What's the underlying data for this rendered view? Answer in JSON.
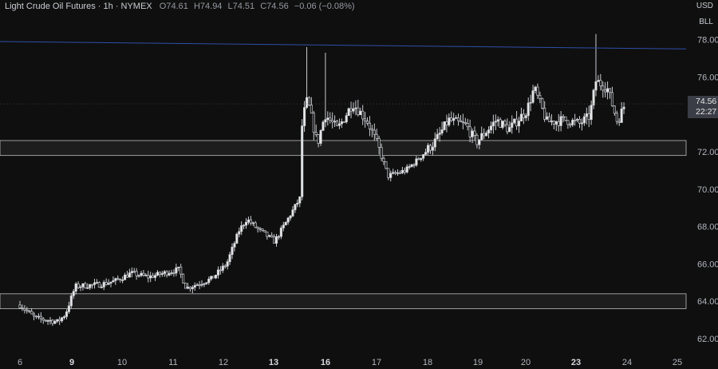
{
  "header": {
    "symbol": "Light Crude Oil Futures · 1h · NYMEX",
    "open": "O74.61",
    "high": "H74.94",
    "low": "L74.51",
    "close": "C74.56",
    "change": "−0.06 (−0.08%)"
  },
  "axis_badges": {
    "currency": "USD",
    "unit": "BLL"
  },
  "last_price": {
    "price": "74.56",
    "countdown": "22:27"
  },
  "colors": {
    "background": "#0f0f0f",
    "candle": "#c9cbd1",
    "trendline": "#1e3a8a",
    "zone_fill": "#2a2a2a",
    "zone_border": "#bdbdbd",
    "text": "#b2b5be"
  },
  "chart_data": {
    "type": "candlestick",
    "title": "Light Crude Oil Futures · 1h · NYMEX",
    "y_ticks": [
      62.0,
      64.0,
      66.0,
      68.0,
      70.0,
      72.0,
      74.0,
      76.0,
      78.0
    ],
    "x_ticks": [
      "6",
      "9",
      "10",
      "11",
      "12",
      "13",
      "16",
      "17",
      "18",
      "19",
      "20",
      "23",
      "24",
      "25"
    ],
    "bold_x_ticks": [
      "9",
      "13",
      "16",
      "23"
    ],
    "ylim": [
      61.5,
      79.2
    ],
    "grid": false,
    "zones": [
      {
        "from": 71.8,
        "to": 72.6
      },
      {
        "from": 63.6,
        "to": 64.4
      }
    ],
    "trendline": {
      "start": [
        0,
        77.9
      ],
      "end": [
        25,
        77.5
      ]
    },
    "price_path": [
      [
        0,
        63.8
      ],
      [
        0.6,
        63.1
      ],
      [
        1.5,
        62.9
      ],
      [
        1.8,
        63.3
      ],
      [
        2.2,
        64.8
      ],
      [
        3.2,
        64.9
      ],
      [
        3.8,
        65.1
      ],
      [
        4.4,
        65.5
      ],
      [
        5.1,
        65.3
      ],
      [
        6.3,
        65.7
      ],
      [
        6.6,
        64.7
      ],
      [
        7.6,
        65.2
      ],
      [
        8.2,
        66.0
      ],
      [
        8.7,
        67.8
      ],
      [
        9.0,
        68.4
      ],
      [
        9.4,
        67.9
      ],
      [
        10.1,
        67.2
      ],
      [
        10.5,
        68.1
      ],
      [
        11.1,
        69.5
      ],
      [
        11.2,
        73.7
      ],
      [
        11.4,
        74.8
      ],
      [
        11.8,
        72.4
      ],
      [
        12.1,
        74.0
      ],
      [
        12.6,
        73.2
      ],
      [
        13.2,
        74.6
      ],
      [
        13.8,
        73.6
      ],
      [
        14.2,
        72.3
      ],
      [
        14.6,
        70.7
      ],
      [
        15.3,
        71.0
      ],
      [
        15.8,
        71.6
      ],
      [
        16.5,
        72.6
      ],
      [
        17.0,
        73.7
      ],
      [
        17.7,
        73.4
      ],
      [
        18.1,
        72.5
      ],
      [
        18.9,
        73.7
      ],
      [
        19.4,
        73.2
      ],
      [
        20.1,
        74.2
      ],
      [
        20.4,
        75.4
      ],
      [
        20.9,
        73.6
      ],
      [
        21.7,
        73.7
      ],
      [
        22.2,
        73.5
      ],
      [
        22.6,
        73.9
      ],
      [
        22.85,
        75.8
      ],
      [
        23.3,
        75.4
      ],
      [
        23.7,
        73.6
      ],
      [
        24.0,
        74.56
      ]
    ],
    "spikes": [
      {
        "at": 11.4,
        "high": 77.6
      },
      {
        "at": 12.1,
        "high": 77.3
      },
      {
        "at": 22.85,
        "high": 78.3
      }
    ],
    "last_price": 74.56
  }
}
